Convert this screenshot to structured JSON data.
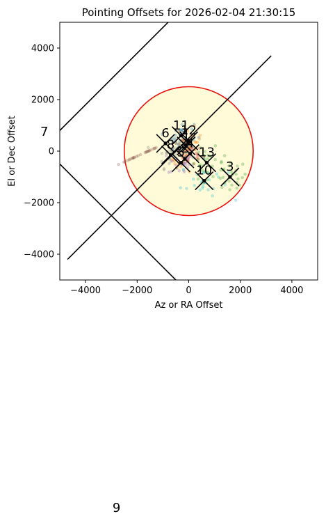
{
  "chart_data": {
    "type": "scatter",
    "title": "Pointing Offsets for 2026-02-04 21:30:15",
    "xlabel": "Az or RA Offset",
    "ylabel": "El or Dec Offset",
    "xlim": [
      -5000,
      5000
    ],
    "ylim": [
      -5000,
      5000
    ],
    "xticks": [
      -4000,
      -2000,
      0,
      2000,
      4000
    ],
    "yticks": [
      -4000,
      -2000,
      0,
      2000,
      4000
    ],
    "xtick_labels": [
      "−4000",
      "−2000",
      "0",
      "2000",
      "4000"
    ],
    "ytick_labels": [
      "−4000",
      "−2000",
      "0",
      "2000",
      "4000"
    ],
    "circle": {
      "center": [
        0,
        0
      ],
      "radius": 2500,
      "edge_color": "#e8110f",
      "fill_color": "#fffbd9"
    },
    "lines": [
      {
        "x": [
          -5000,
          -800
        ],
        "y": [
          800,
          5000
        ]
      },
      {
        "x": [
          -4700,
          3200
        ],
        "y": [
          -4200,
          3700
        ]
      },
      {
        "x": [
          -5000,
          -500
        ],
        "y": [
          -500,
          -5000
        ]
      }
    ],
    "clusters": [
      {
        "label": "1",
        "x": -100,
        "y": 200,
        "color": "#1f77b4"
      },
      {
        "label": "2",
        "x": -150,
        "y": -300,
        "color": "#ff7f0e"
      },
      {
        "label": "3",
        "x": 1600,
        "y": -1000,
        "color": "#2ca02c"
      },
      {
        "label": "4",
        "x": 50,
        "y": -100,
        "color": "#d62728"
      },
      {
        "label": "5",
        "x": -300,
        "y": -450,
        "color": "#9467bd"
      },
      {
        "label": "6",
        "x": -900,
        "y": 300,
        "color": "#8c564b"
      },
      {
        "label": "7",
        "x": -5600,
        "y": 600,
        "color": "#e377c2"
      },
      {
        "label": "8",
        "x": -700,
        "y": -150,
        "color": "#7f7f7f"
      },
      {
        "label": "9",
        "x": -2800,
        "y": -14000,
        "color": "#bcbd22"
      },
      {
        "label": "10",
        "x": 600,
        "y": -1150,
        "color": "#17becf"
      },
      {
        "label": "11",
        "x": -300,
        "y": 600,
        "color": "#1f77b4"
      },
      {
        "label": "12",
        "x": 0,
        "y": 400,
        "color": "#ff7f0e"
      },
      {
        "label": "13",
        "x": 700,
        "y": -450,
        "color": "#2ca02c"
      }
    ]
  }
}
